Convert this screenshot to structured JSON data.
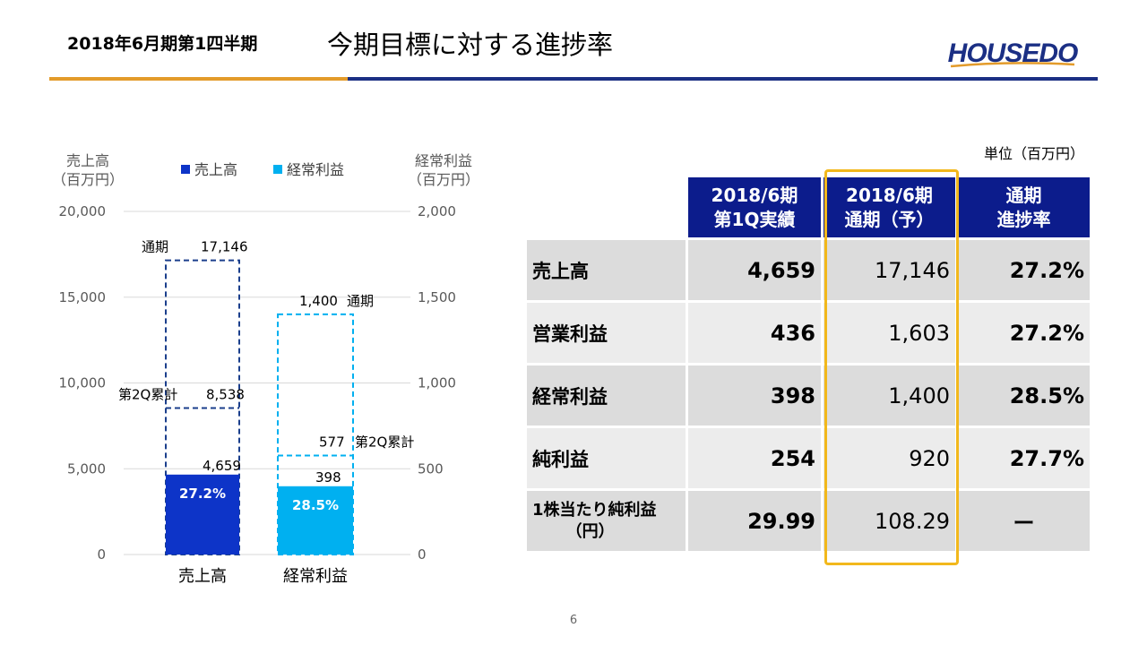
{
  "header": {
    "period": "2018年6月期第1四半期",
    "title": "今期目標に対する進捗率",
    "logo": "HOUSEDO"
  },
  "page_number": "6",
  "chart_data": {
    "type": "bar",
    "title": "",
    "categories": [
      "売上高",
      "経常利益"
    ],
    "left_axis": {
      "label_line1": "売上高",
      "label_line2": "（百万円）",
      "ylim": [
        0,
        20000
      ],
      "ticks": [
        "0",
        "5,000",
        "10,000",
        "15,000",
        "20,000"
      ]
    },
    "right_axis": {
      "label_line1": "経常利益",
      "label_line2": "（百万円）",
      "ylim": [
        0,
        2000
      ],
      "ticks": [
        "0",
        "500",
        "1,000",
        "1,500",
        "2,000"
      ]
    },
    "legend": [
      "売上高",
      "経常利益"
    ],
    "grid": true,
    "colors": {
      "sales": "#0d34c8",
      "ordinary_profit": "#00b0f0",
      "sales_outline": "#1b3f8c",
      "profit_outline": "#00b0f0"
    },
    "series": [
      {
        "name": "売上高",
        "axis": "left",
        "actual": 4659,
        "full_year": 17146,
        "q2_cumulative": 8538,
        "progress": "27.2%",
        "actual_label": "4,659",
        "full_year_label": "17,146",
        "q2_label": "8,538",
        "full_year_tag": "通期",
        "q2_tag": "第2Q累計"
      },
      {
        "name": "経常利益",
        "axis": "right",
        "actual": 398,
        "full_year": 1400,
        "q2_cumulative": 577,
        "progress": "28.5%",
        "actual_label": "398",
        "full_year_label": "1,400",
        "q2_label": "577",
        "full_year_tag": "通期",
        "q2_tag": "第2Q累計"
      }
    ]
  },
  "table": {
    "unit": "単位（百万円）",
    "headers": [
      {
        "line1": "2018/6期",
        "line2": "第1Q実績"
      },
      {
        "line1": "2018/6期",
        "line2": "通期（予）"
      },
      {
        "line1": "通期",
        "line2": "進捗率"
      }
    ],
    "rows": [
      {
        "label": "売上高",
        "q1": "4,659",
        "forecast": "17,146",
        "progress": "27.2%"
      },
      {
        "label": "営業利益",
        "q1": "436",
        "forecast": "1,603",
        "progress": "27.2%"
      },
      {
        "label": "経常利益",
        "q1": "398",
        "forecast": "1,400",
        "progress": "28.5%"
      },
      {
        "label": "純利益",
        "q1": "254",
        "forecast": "920",
        "progress": "27.7%"
      },
      {
        "label_line1": "1株当たり純利益",
        "label_line2": "（円）",
        "q1": "29.99",
        "forecast": "108.29",
        "progress": "ー"
      }
    ]
  }
}
